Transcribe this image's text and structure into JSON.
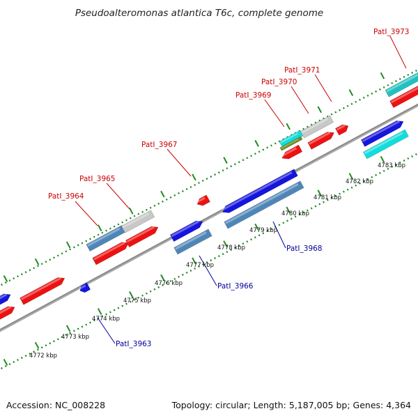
{
  "title": "Pseudoalteromonas atlantica T6c, complete genome",
  "footer": {
    "accession": "Accession: NC_008228",
    "topology": "Topology: circular; Length: 5,187,005 bp; Genes: 4,364"
  },
  "scale_labels": [
    "4772 kbp",
    "4773 kbp",
    "4774 kbp",
    "4775 kbp",
    "4776 kbp",
    "4777 kbp",
    "4778 kbp",
    "4779 kbp",
    "4780 kbp",
    "4781 kbp",
    "4782 kbp",
    "4783 kbp"
  ],
  "gene_labels": {
    "top": [
      "PatI_3964",
      "PatI_3965",
      "PatI_3967",
      "PatI_3969",
      "PatI_3970",
      "PatI_3971",
      "PatI_3973"
    ],
    "bottom": [
      "PatI_3963",
      "PatI_3966",
      "PatI_3968"
    ]
  },
  "colors": {
    "backbone": "#8c8c8c",
    "dotted_track": "#1f8a1f",
    "red_gene": "#ee1111",
    "blue_gene": "#1515dd",
    "steel_gene": "#4f86b8",
    "gray_gene": "#c8c8c8",
    "cyan_gene": "#11dddd",
    "teal_gene": "#22c0c0",
    "olive_gene": "#6f8f25",
    "label_red": "#cc0000",
    "label_blue": "#000099"
  }
}
